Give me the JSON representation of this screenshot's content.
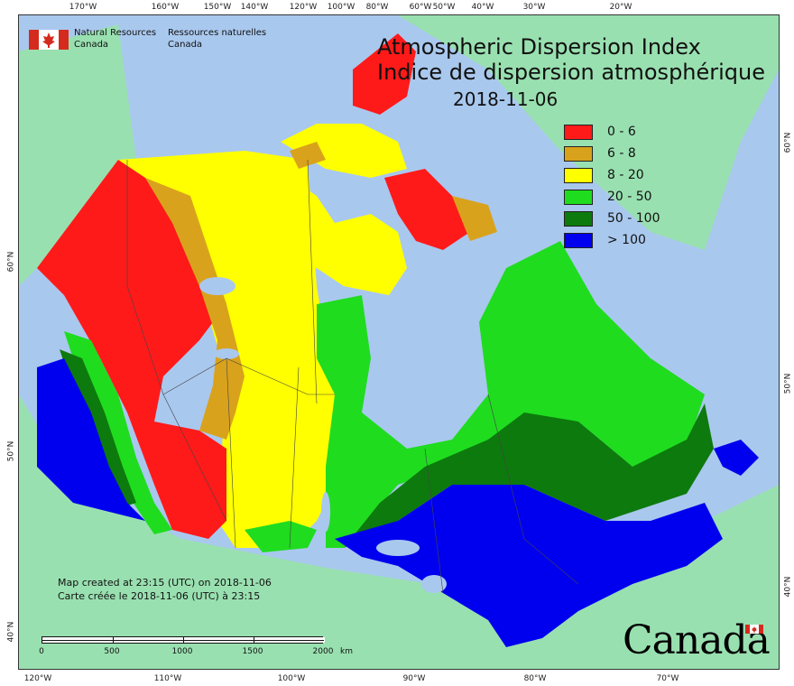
{
  "title_en": "Atmospheric Dispersion Index",
  "title_fr": "Indice de dispersion atmosphérique",
  "date": "2018-11-06",
  "agency_en_line1": "Natural Resources",
  "agency_en_line2": "Canada",
  "agency_fr_line1": "Ressources naturelles",
  "agency_fr_line2": "Canada",
  "legend": [
    {
      "label": "0 - 6",
      "color": "#ff1a1a"
    },
    {
      "label": "6 - 8",
      "color": "#d9a21c"
    },
    {
      "label": "8 - 20",
      "color": "#ffff00"
    },
    {
      "label": "20 - 50",
      "color": "#1fdc1f"
    },
    {
      "label": "50 - 100",
      "color": "#0d7a0d"
    },
    {
      "label": "> 100",
      "color": "#0000ee"
    }
  ],
  "note_en": "Map created at 23:15 (UTC) on 2018-11-06",
  "note_fr": "Carte créée le 2018-11-06 (UTC) à 23:15",
  "scale": {
    "labels": [
      "0",
      "500",
      "1000",
      "1500",
      "2000"
    ],
    "unit": "km"
  },
  "wordmark": "Canada",
  "colors": {
    "water": "#a9c8ee",
    "foreign_land": "#99e0b0"
  },
  "ticks_top": [
    "170°W",
    "160°W",
    "150°W",
    "140°W",
    "120°W",
    "100°W",
    "80°W",
    "60°W",
    "50°W",
    "40°W",
    "30°W",
    "20°W"
  ],
  "ticks_bottom": [
    "120°W",
    "110°W",
    "100°W",
    "90°W",
    "80°W",
    "70°W"
  ],
  "ticks_left": [
    "60°N",
    "50°N",
    "40°N"
  ],
  "ticks_right": [
    "60°N",
    "50°N",
    "40°N"
  ]
}
